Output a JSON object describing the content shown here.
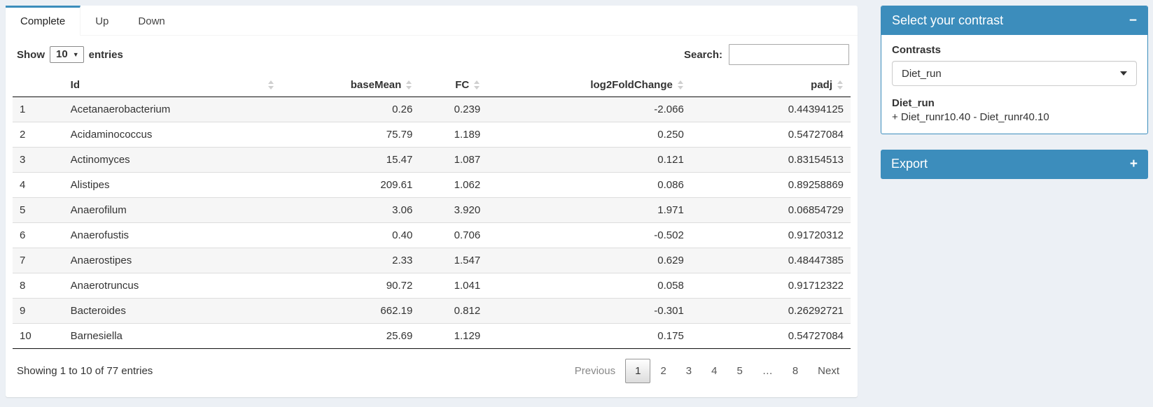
{
  "tabs": [
    {
      "label": "Complete",
      "active": true
    },
    {
      "label": "Up",
      "active": false
    },
    {
      "label": "Down",
      "active": false
    }
  ],
  "table_controls": {
    "show_label": "Show",
    "page_length": "10",
    "entries_label": "entries",
    "search_label": "Search:",
    "search_value": ""
  },
  "table": {
    "columns": {
      "index": "",
      "id": "Id",
      "baseMean": "baseMean",
      "fc": "FC",
      "log2FoldChange": "log2FoldChange",
      "padj": "padj"
    },
    "rows": [
      {
        "index": "1",
        "id": "Acetanaerobacterium",
        "baseMean": "0.26",
        "fc": "0.239",
        "log2FoldChange": "-2.066",
        "padj": "0.44394125"
      },
      {
        "index": "2",
        "id": "Acidaminococcus",
        "baseMean": "75.79",
        "fc": "1.189",
        "log2FoldChange": "0.250",
        "padj": "0.54727084"
      },
      {
        "index": "3",
        "id": "Actinomyces",
        "baseMean": "15.47",
        "fc": "1.087",
        "log2FoldChange": "0.121",
        "padj": "0.83154513"
      },
      {
        "index": "4",
        "id": "Alistipes",
        "baseMean": "209.61",
        "fc": "1.062",
        "log2FoldChange": "0.086",
        "padj": "0.89258869"
      },
      {
        "index": "5",
        "id": "Anaerofilum",
        "baseMean": "3.06",
        "fc": "3.920",
        "log2FoldChange": "1.971",
        "padj": "0.06854729"
      },
      {
        "index": "6",
        "id": "Anaerofustis",
        "baseMean": "0.40",
        "fc": "0.706",
        "log2FoldChange": "-0.502",
        "padj": "0.91720312"
      },
      {
        "index": "7",
        "id": "Anaerostipes",
        "baseMean": "2.33",
        "fc": "1.547",
        "log2FoldChange": "0.629",
        "padj": "0.48447385"
      },
      {
        "index": "8",
        "id": "Anaerotruncus",
        "baseMean": "90.72",
        "fc": "1.041",
        "log2FoldChange": "0.058",
        "padj": "0.91712322"
      },
      {
        "index": "9",
        "id": "Bacteroides",
        "baseMean": "662.19",
        "fc": "0.812",
        "log2FoldChange": "-0.301",
        "padj": "0.26292721"
      },
      {
        "index": "10",
        "id": "Barnesiella",
        "baseMean": "25.69",
        "fc": "1.129",
        "log2FoldChange": "0.175",
        "padj": "0.54727084"
      }
    ]
  },
  "footer": {
    "info": "Showing 1 to 10 of 77 entries",
    "pagination": {
      "previous": "Previous",
      "pages": [
        "1",
        "2",
        "3",
        "4",
        "5",
        "…",
        "8"
      ],
      "active_page": "1",
      "next": "Next"
    }
  },
  "contrast_panel": {
    "title": "Select your contrast",
    "collapse_icon": "−",
    "contrasts_label": "Contrasts",
    "selected_contrast": "Diet_run",
    "contrast_name": "Diet_run",
    "contrast_formula": "+ Diet_runr10.40 - Diet_runr40.10"
  },
  "export_panel": {
    "title": "Export",
    "expand_icon": "+"
  },
  "colors": {
    "primary": "#3c8dbc",
    "page_background": "#ecf0f5",
    "stripe": "#f6f6f6"
  }
}
